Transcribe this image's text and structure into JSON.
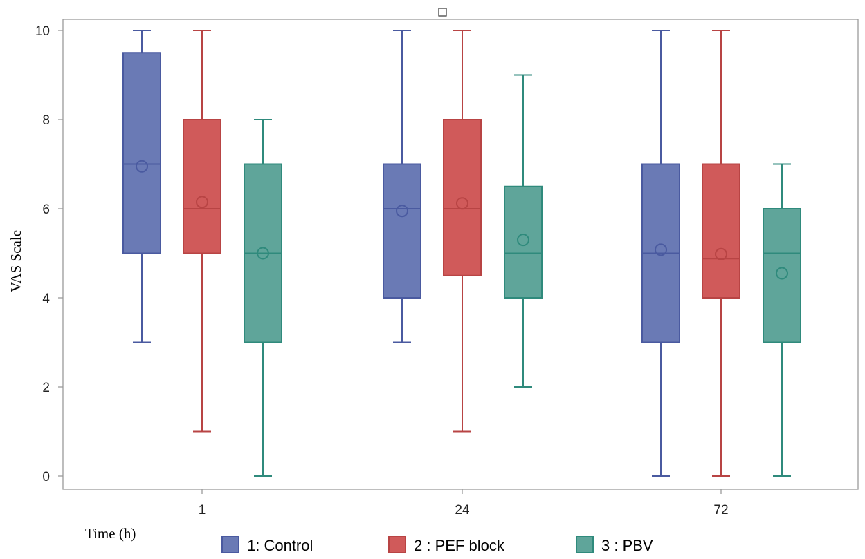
{
  "chart_data": {
    "type": "boxplot",
    "title": "",
    "xlabel": "Time (h)",
    "ylabel": "VAS Scale",
    "ylim": [
      0,
      10
    ],
    "yticks": [
      0,
      2,
      4,
      6,
      8,
      10
    ],
    "categories": [
      "1",
      "24",
      "72"
    ],
    "legend_position": "bottom",
    "grid": false,
    "series": [
      {
        "name": "1: Control",
        "color": "#6a7ab5",
        "stroke": "#4a5aa0",
        "boxes": [
          {
            "min": 3,
            "q1": 5,
            "median": 7,
            "q3": 9.5,
            "max": 10,
            "mean": 6.95
          },
          {
            "min": 3,
            "q1": 4,
            "median": 6,
            "q3": 7,
            "max": 10,
            "mean": 5.95
          },
          {
            "min": 0,
            "q1": 3,
            "median": 5,
            "q3": 7,
            "max": 10,
            "mean": 5.08
          }
        ]
      },
      {
        "name": "2 : PEF block",
        "color": "#d05a5a",
        "stroke": "#b84444",
        "boxes": [
          {
            "min": 1,
            "q1": 5,
            "median": 6,
            "q3": 8,
            "max": 10,
            "mean": 6.15
          },
          {
            "min": 1,
            "q1": 4.5,
            "median": 6,
            "q3": 8,
            "max": 10,
            "mean": 6.12
          },
          {
            "min": 0,
            "q1": 4,
            "median": 4.88,
            "q3": 7,
            "max": 10,
            "mean": 4.98
          }
        ]
      },
      {
        "name": "3 : PBV",
        "color": "#5fa59a",
        "stroke": "#2f8a7c",
        "boxes": [
          {
            "min": 0,
            "q1": 3,
            "median": 5,
            "q3": 7,
            "max": 8,
            "mean": 5.0
          },
          {
            "min": 2,
            "q1": 4,
            "median": 5,
            "q3": 6.5,
            "max": 9,
            "mean": 5.3
          },
          {
            "min": 0,
            "q1": 3,
            "median": 5,
            "q3": 6,
            "max": 7,
            "mean": 4.55
          }
        ]
      }
    ]
  }
}
